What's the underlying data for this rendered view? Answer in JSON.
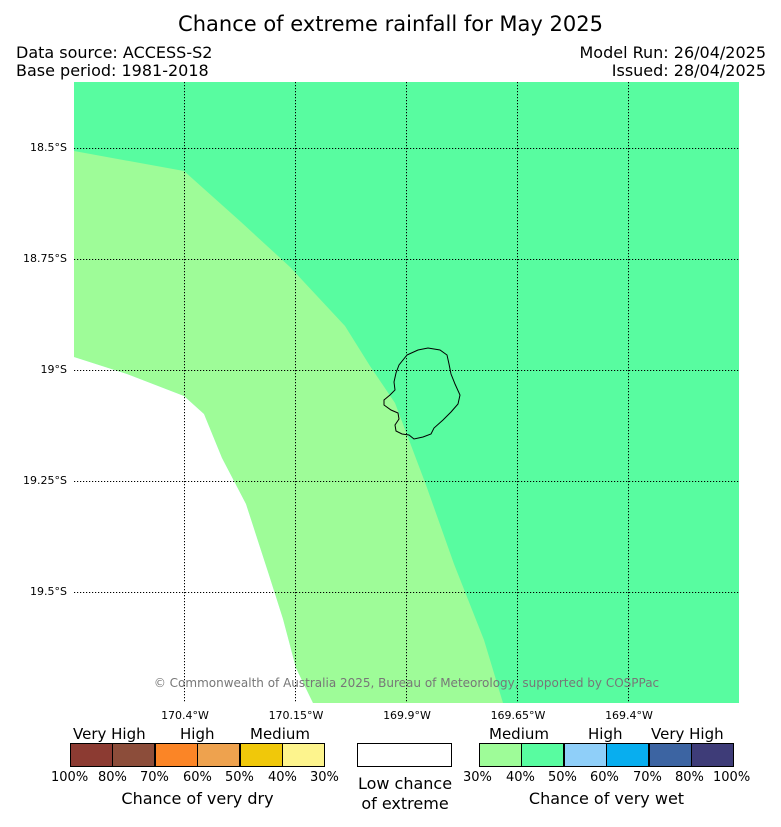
{
  "title": "Chance of extreme rainfall for May 2025",
  "meta": {
    "data_source": "Data source: ACCESS-S2",
    "base_period": "Base period: 1981-2018",
    "model_run": "Model Run: 26/04/2025",
    "issued": "Issued: 28/04/2025"
  },
  "map": {
    "lat_labels": [
      "18.5°S",
      "18.75°S",
      "19°S",
      "19.25°S",
      "19.5°S"
    ],
    "lon_labels": [
      "170.4°W",
      "170.15°W",
      "169.9°W",
      "169.65°W",
      "169.4°W"
    ],
    "copyright": "© Commonwealth of Australia 2025, Bureau of Meteorology, supported by COSPPac",
    "colors": {
      "wet_medium_30_40": "#9efc98",
      "wet_medium_40_50": "#58fca0",
      "low_chance": "#ffffff",
      "coastline": "#000000"
    },
    "island_icon": "niue-coastline"
  },
  "legend": {
    "dry": {
      "headers": [
        "Very High",
        "High",
        "Medium"
      ],
      "percent_labels": [
        "100%",
        "80%",
        "70%",
        "60%",
        "50%",
        "40%",
        "30%"
      ],
      "colors": [
        "#8c3b32",
        "#8c4d3a",
        "#fb8526",
        "#eea24e",
        "#f0c80a",
        "#fdf48d"
      ],
      "caption": "Chance of very dry"
    },
    "low": {
      "caption_line1": "Low chance",
      "caption_line2": "of extreme",
      "color": "#ffffff"
    },
    "wet": {
      "headers": [
        "Medium",
        "High",
        "Very High"
      ],
      "percent_labels": [
        "30%",
        "40%",
        "50%",
        "60%",
        "70%",
        "80%",
        "100%"
      ],
      "colors": [
        "#9efc98",
        "#58fca0",
        "#8fcff9",
        "#08aeef",
        "#3c64a2",
        "#3e3c78"
      ],
      "caption": "Chance of very wet"
    }
  }
}
